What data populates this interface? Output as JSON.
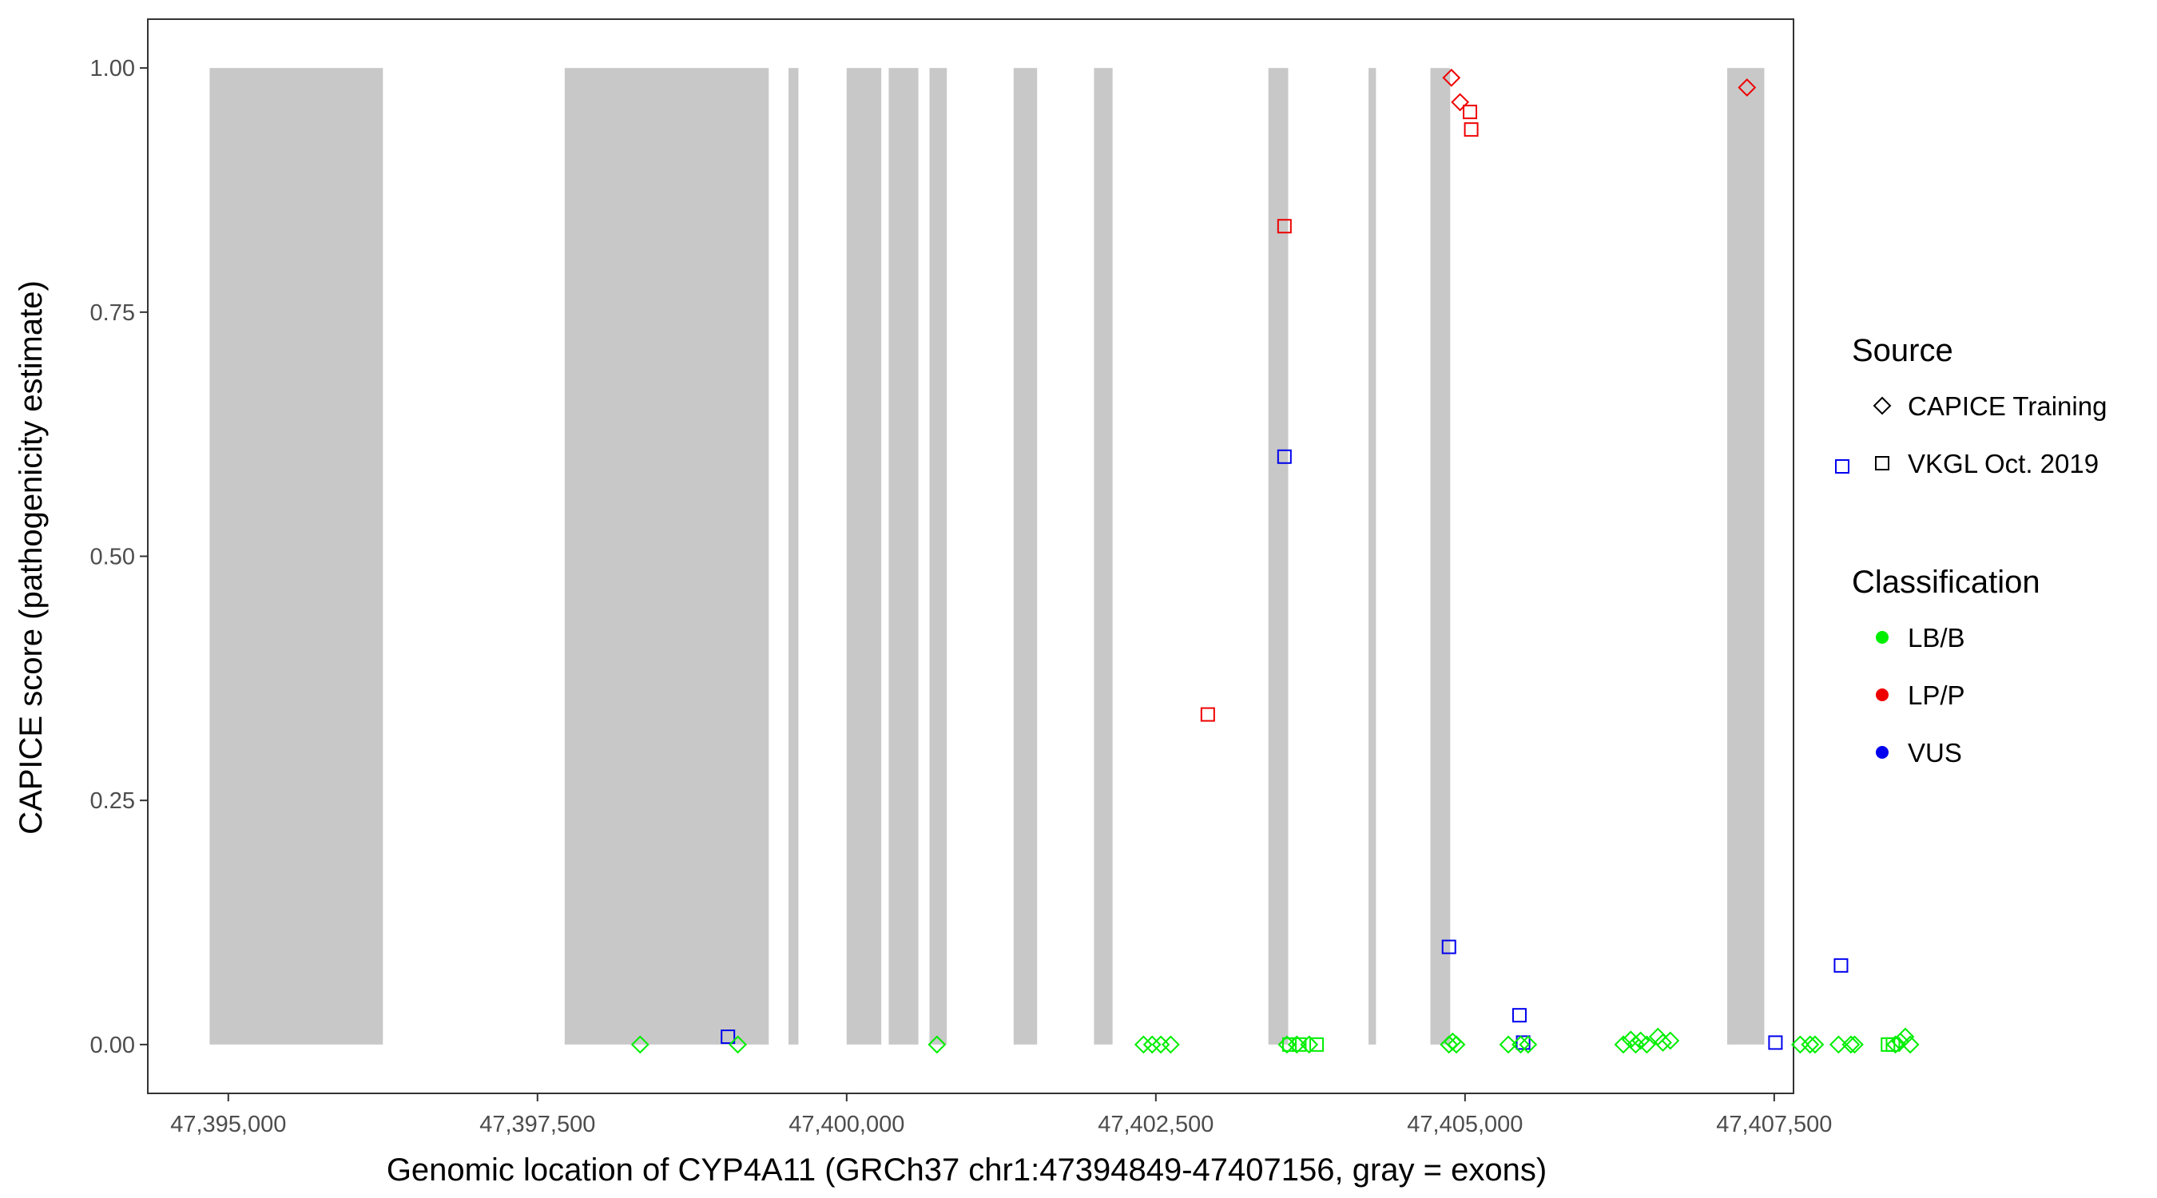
{
  "chart_data": {
    "type": "scatter",
    "xlabel": "Genomic location of CYP4A11 (GRCh37 chr1:47394849-47407156, gray = exons)",
    "ylabel": "CAPICE score (pathogenicity estimate)",
    "xlim": [
      47394349,
      47407656
    ],
    "ylim": [
      -0.05,
      1.05
    ],
    "x_ticks": [
      47395000,
      47397500,
      47400000,
      47402500,
      47405000,
      47407500
    ],
    "x_tick_labels": [
      "47,395,000",
      "47,397,500",
      "47,400,000",
      "47,402,500",
      "47,405,000",
      "47,407,500"
    ],
    "y_ticks": [
      0,
      0.25,
      0.5,
      0.75,
      1
    ],
    "y_tick_labels": [
      "0.00",
      "0.25",
      "0.50",
      "0.75",
      "1.00"
    ],
    "grid": false,
    "exons": [
      [
        47394849,
        47396250
      ],
      [
        47397720,
        47399370
      ],
      [
        47399530,
        47399610
      ],
      [
        47400000,
        47400280
      ],
      [
        47400340,
        47400580
      ],
      [
        47400670,
        47400810
      ],
      [
        47401350,
        47401540
      ],
      [
        47402000,
        47402150
      ],
      [
        47403410,
        47403570
      ],
      [
        47404220,
        47404280
      ],
      [
        47404720,
        47404880
      ],
      [
        47407120,
        47407420
      ]
    ],
    "colors": {
      "LB/B": "#00ee00",
      "LP/P": "#ee0000",
      "VUS": "#0000ee",
      "exon": "#c8c8c8"
    },
    "series": [
      {
        "source": "CAPICE Training",
        "classification": "LP/P",
        "points": [
          [
            47404890,
            0.99
          ],
          [
            47404960,
            0.965
          ],
          [
            47407280,
            0.98
          ]
        ]
      },
      {
        "source": "VKGL Oct. 2019",
        "classification": "LP/P",
        "points": [
          [
            47402920,
            0.338
          ],
          [
            47403540,
            0.838
          ],
          [
            47405040,
            0.955
          ],
          [
            47405050,
            0.937
          ]
        ]
      },
      {
        "source": "VKGL Oct. 2019",
        "classification": "VUS",
        "points": [
          [
            47399040,
            0.008
          ],
          [
            47403540,
            0.602
          ],
          [
            47404870,
            0.1
          ],
          [
            47405440,
            0.03
          ],
          [
            47405470,
            0.002
          ],
          [
            47408050,
            0.592
          ],
          [
            47408040,
            0.081
          ],
          [
            47407510,
            0.002
          ]
        ]
      },
      {
        "source": "CAPICE Training",
        "classification": "LB/B",
        "points": [
          [
            47398330,
            0.0
          ],
          [
            47399120,
            0.0
          ],
          [
            47400730,
            0.0
          ],
          [
            47402400,
            0.0
          ],
          [
            47402470,
            0.0
          ],
          [
            47402540,
            0.0
          ],
          [
            47402620,
            0.0
          ],
          [
            47403560,
            0.0
          ],
          [
            47403640,
            0.0
          ],
          [
            47403740,
            0.0
          ],
          [
            47404870,
            0.0
          ],
          [
            47404900,
            0.003
          ],
          [
            47404930,
            0.0
          ],
          [
            47405350,
            0.0
          ],
          [
            47405450,
            0.0
          ],
          [
            47405510,
            0.0
          ],
          [
            47406280,
            0.0
          ],
          [
            47406340,
            0.005
          ],
          [
            47406380,
            0.0
          ],
          [
            47406420,
            0.004
          ],
          [
            47406470,
            0.0
          ],
          [
            47406560,
            0.008
          ],
          [
            47406600,
            0.002
          ],
          [
            47406660,
            0.004
          ],
          [
            47407710,
            0.0
          ],
          [
            47407790,
            0.0
          ],
          [
            47407830,
            0.0
          ],
          [
            47408020,
            0.0
          ],
          [
            47408120,
            0.0
          ],
          [
            47408150,
            0.0
          ],
          [
            47408480,
            0.0
          ],
          [
            47408520,
            0.003
          ],
          [
            47408560,
            0.008
          ],
          [
            47408600,
            0.0
          ]
        ]
      },
      {
        "source": "VKGL Oct. 2019",
        "classification": "LB/B",
        "points": [
          [
            47403580,
            0.0
          ],
          [
            47403660,
            0.0
          ],
          [
            47403800,
            0.0
          ],
          [
            47408420,
            0.0
          ],
          [
            47408460,
            0.0
          ]
        ]
      }
    ],
    "legend": {
      "placement": "right",
      "source_title": "Source",
      "source_items": [
        {
          "label": "CAPICE Training",
          "shape": "diamond"
        },
        {
          "label": "VKGL Oct. 2019",
          "shape": "square"
        }
      ],
      "class_title": "Classification",
      "class_items": [
        {
          "label": "LB/B",
          "color": "#00ee00"
        },
        {
          "label": "LP/P",
          "color": "#ee0000"
        },
        {
          "label": "VUS",
          "color": "#0000ee"
        }
      ]
    }
  }
}
